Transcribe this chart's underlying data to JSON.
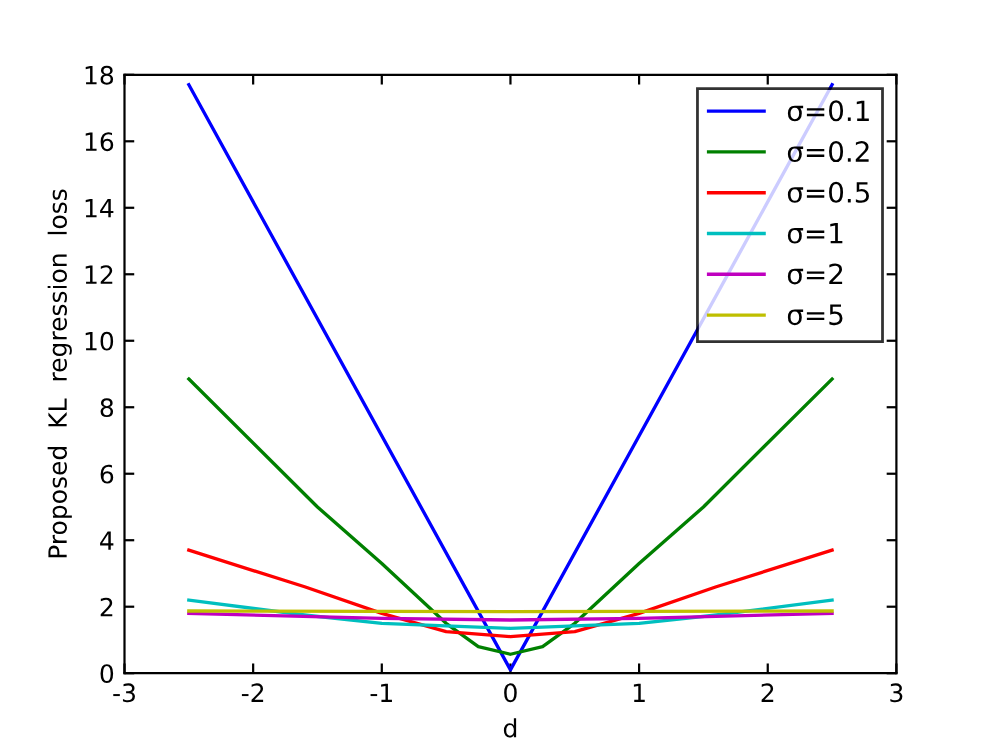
{
  "chart_data": {
    "type": "line",
    "xlabel": "d",
    "ylabel": "Proposed  KL  regression  loss",
    "xlim": [
      -3,
      3
    ],
    "xticks": [
      -3,
      -2,
      -1,
      0,
      1,
      2,
      3
    ],
    "ylim": [
      0,
      18
    ],
    "yticks": [
      0,
      2,
      4,
      6,
      8,
      10,
      12,
      14,
      16,
      18
    ],
    "grid": false,
    "legend": "top right",
    "marker": "none",
    "line_style": "solid",
    "series": [
      {
        "name": "σ=0.1",
        "color": "#0000ff",
        "x": [
          -2.5,
          0,
          2.5
        ],
        "values": [
          17.7,
          0.1,
          17.7
        ]
      },
      {
        "name": "σ=0.2",
        "color": "#008000",
        "x": [
          -2.5,
          -1.5,
          -1,
          -0.5,
          -0.25,
          0,
          0.25,
          0.5,
          1,
          1.5,
          2.5
        ],
        "values": [
          8.85,
          5.0,
          3.3,
          1.5,
          0.8,
          0.57,
          0.8,
          1.5,
          3.3,
          5.0,
          8.85
        ]
      },
      {
        "name": "σ=0.5",
        "color": "#ff0000",
        "x": [
          -2.5,
          -1.6,
          -1,
          -0.5,
          0,
          0.5,
          1,
          1.6,
          2.5
        ],
        "values": [
          3.7,
          2.6,
          1.8,
          1.25,
          1.1,
          1.25,
          1.8,
          2.6,
          3.7
        ]
      },
      {
        "name": "σ=1",
        "color": "#00bfbf",
        "x": [
          -2.5,
          -1.6,
          -1,
          0,
          1,
          1.6,
          2.5
        ],
        "values": [
          2.2,
          1.75,
          1.5,
          1.35,
          1.5,
          1.75,
          2.2
        ]
      },
      {
        "name": "σ=2",
        "color": "#bf00bf",
        "x": [
          -2.5,
          -1,
          0,
          1,
          2.5
        ],
        "values": [
          1.8,
          1.65,
          1.6,
          1.65,
          1.8
        ]
      },
      {
        "name": "σ=5",
        "color": "#bfbf00",
        "x": [
          -2.5,
          0,
          2.5
        ],
        "values": [
          1.87,
          1.85,
          1.87
        ]
      }
    ]
  }
}
